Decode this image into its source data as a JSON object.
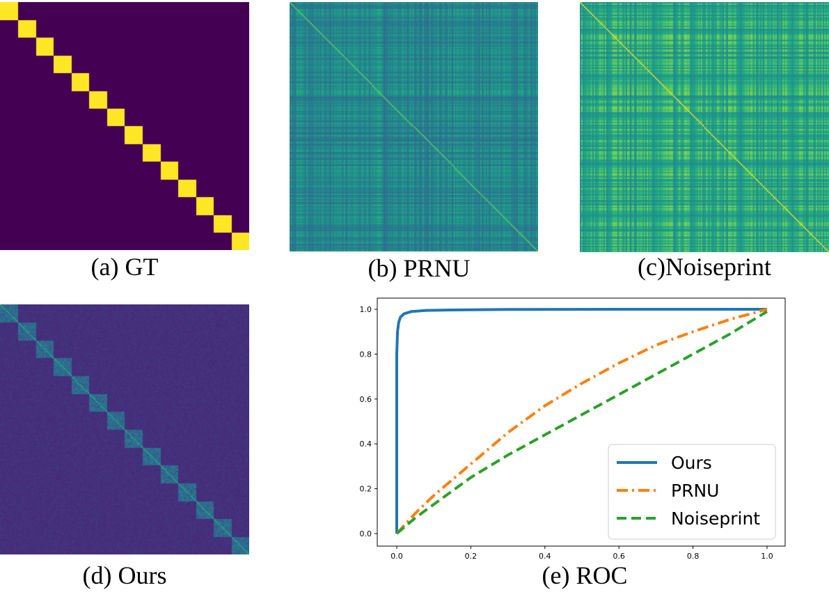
{
  "figure": {
    "panels": [
      {
        "id": "gt",
        "caption": "(a) GT"
      },
      {
        "id": "prnu",
        "caption": "(b) PRNU"
      },
      {
        "id": "noiseprint",
        "caption": "(c)Noiseprint"
      },
      {
        "id": "ours",
        "caption": "(d) Ours"
      },
      {
        "id": "roc",
        "caption": "(e) ROC"
      }
    ]
  },
  "chart_data": [
    {
      "type": "heatmap",
      "panel": "gt",
      "description": "ground-truth same-camera block-diagonal matrix",
      "blocks": 14,
      "colormap": "viridis",
      "values": {
        "diagonal_blocks": 1.0,
        "off_diagonal": 0.0
      }
    },
    {
      "type": "heatmap",
      "panel": "prnu",
      "colormap": "viridis",
      "values": {
        "typical_range": [
          0.35,
          0.65
        ]
      }
    },
    {
      "type": "heatmap",
      "panel": "noiseprint",
      "colormap": "viridis",
      "values": {
        "typical_range": [
          0.45,
          0.85
        ]
      }
    },
    {
      "type": "heatmap",
      "panel": "ours",
      "blocks": 14,
      "colormap": "viridis",
      "values": {
        "off_diagonal": 0.12,
        "diagonal_blocks": 0.35,
        "diagonal": 0.6
      }
    },
    {
      "type": "line",
      "panel": "roc",
      "xlim": [
        0.0,
        1.0
      ],
      "ylim": [
        0.0,
        1.0
      ],
      "xticks": [
        "0.0",
        "0.2",
        "0.4",
        "0.6",
        "0.8",
        "1.0"
      ],
      "yticks": [
        "0.0",
        "0.2",
        "0.4",
        "0.6",
        "0.8",
        "1.0"
      ],
      "legend_position": "lower-right",
      "series": [
        {
          "name": "Ours",
          "color": "#1f77b4",
          "style": "solid",
          "x": [
            0.0,
            0.0,
            0.002,
            0.005,
            0.01,
            0.02,
            0.04,
            0.08,
            0.15,
            0.3,
            0.6,
            1.0
          ],
          "y": [
            0.0,
            0.8,
            0.9,
            0.94,
            0.965,
            0.98,
            0.99,
            0.995,
            0.997,
            0.999,
            1.0,
            1.0
          ]
        },
        {
          "name": "PRNU",
          "color": "#ff7f0e",
          "style": "dashdot",
          "x": [
            0.0,
            0.05,
            0.1,
            0.2,
            0.3,
            0.4,
            0.5,
            0.6,
            0.7,
            0.8,
            0.9,
            1.0
          ],
          "y": [
            0.0,
            0.09,
            0.17,
            0.31,
            0.45,
            0.57,
            0.67,
            0.76,
            0.84,
            0.9,
            0.955,
            1.0
          ]
        },
        {
          "name": "Noiseprint",
          "color": "#2ca02c",
          "style": "dashed",
          "x": [
            0.0,
            0.05,
            0.1,
            0.2,
            0.3,
            0.4,
            0.5,
            0.6,
            0.7,
            0.8,
            0.9,
            1.0
          ],
          "y": [
            0.0,
            0.07,
            0.13,
            0.25,
            0.35,
            0.44,
            0.53,
            0.62,
            0.71,
            0.8,
            0.89,
            0.99
          ]
        }
      ]
    }
  ]
}
